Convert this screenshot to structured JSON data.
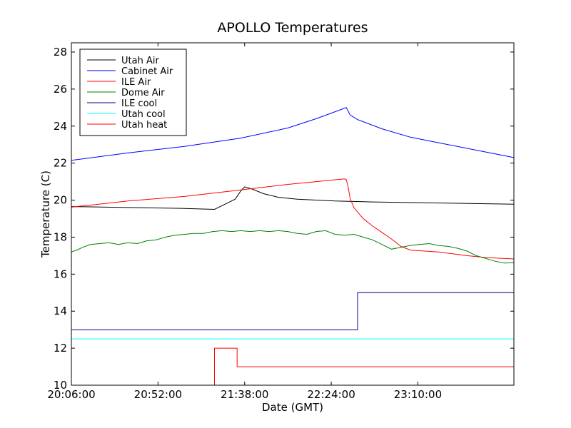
{
  "chart_data": {
    "type": "line",
    "title": "APOLLO Temperatures",
    "xlabel": "Date (GMT)",
    "ylabel": "Temperature (C)",
    "xlim_minutes": [
      0,
      235
    ],
    "ylim": [
      10,
      28.5
    ],
    "x_ticks": [
      {
        "value": 0,
        "label": "20:06:00"
      },
      {
        "value": 46,
        "label": "20:52:00"
      },
      {
        "value": 92,
        "label": "21:38:00"
      },
      {
        "value": 138,
        "label": "22:24:00"
      },
      {
        "value": 184,
        "label": "23:10:00"
      }
    ],
    "y_ticks": [
      {
        "value": 10,
        "label": "10"
      },
      {
        "value": 12,
        "label": "12"
      },
      {
        "value": 14,
        "label": "14"
      },
      {
        "value": 16,
        "label": "16"
      },
      {
        "value": 18,
        "label": "18"
      },
      {
        "value": 20,
        "label": "20"
      },
      {
        "value": 22,
        "label": "22"
      },
      {
        "value": 24,
        "label": "24"
      },
      {
        "value": 26,
        "label": "26"
      },
      {
        "value": 28,
        "label": "28"
      }
    ],
    "legend_position": "top-left",
    "series": [
      {
        "name": "Utah Air",
        "color": "#000000",
        "points": [
          [
            0,
            19.65
          ],
          [
            30,
            19.6
          ],
          [
            60,
            19.55
          ],
          [
            76,
            19.5
          ],
          [
            80,
            19.7
          ],
          [
            87,
            20.05
          ],
          [
            90,
            20.5
          ],
          [
            92,
            20.72
          ],
          [
            96,
            20.6
          ],
          [
            102,
            20.35
          ],
          [
            110,
            20.15
          ],
          [
            120,
            20.05
          ],
          [
            140,
            19.95
          ],
          [
            160,
            19.9
          ],
          [
            190,
            19.85
          ],
          [
            235,
            19.78
          ]
        ]
      },
      {
        "name": "Cabinet Air",
        "color": "#0000ff",
        "points": [
          [
            0,
            22.15
          ],
          [
            30,
            22.55
          ],
          [
            60,
            22.9
          ],
          [
            90,
            23.35
          ],
          [
            115,
            23.9
          ],
          [
            130,
            24.4
          ],
          [
            138,
            24.7
          ],
          [
            146,
            25.0
          ],
          [
            148,
            24.6
          ],
          [
            152,
            24.35
          ],
          [
            165,
            23.85
          ],
          [
            180,
            23.4
          ],
          [
            200,
            23.0
          ],
          [
            215,
            22.7
          ],
          [
            235,
            22.3
          ]
        ]
      },
      {
        "name": "ILE Air",
        "color": "#ff0000",
        "points": [
          [
            0,
            19.62
          ],
          [
            30,
            19.95
          ],
          [
            60,
            20.2
          ],
          [
            90,
            20.55
          ],
          [
            115,
            20.85
          ],
          [
            130,
            21.0
          ],
          [
            140,
            21.1
          ],
          [
            145,
            21.15
          ],
          [
            146,
            21.1
          ],
          [
            147,
            20.7
          ],
          [
            148,
            20.1
          ],
          [
            150,
            19.6
          ],
          [
            155,
            19.0
          ],
          [
            160,
            18.6
          ],
          [
            165,
            18.25
          ],
          [
            170,
            17.9
          ],
          [
            175,
            17.5
          ],
          [
            180,
            17.3
          ],
          [
            195,
            17.2
          ],
          [
            210,
            17.0
          ],
          [
            220,
            16.9
          ],
          [
            235,
            16.82
          ]
        ]
      },
      {
        "name": "Dome Air",
        "color": "#008000",
        "points": [
          [
            0,
            17.2
          ],
          [
            3,
            17.3
          ],
          [
            6,
            17.45
          ],
          [
            10,
            17.6
          ],
          [
            15,
            17.65
          ],
          [
            20,
            17.7
          ],
          [
            25,
            17.6
          ],
          [
            30,
            17.7
          ],
          [
            35,
            17.65
          ],
          [
            40,
            17.8
          ],
          [
            45,
            17.85
          ],
          [
            50,
            18.0
          ],
          [
            55,
            18.1
          ],
          [
            60,
            18.15
          ],
          [
            65,
            18.2
          ],
          [
            70,
            18.2
          ],
          [
            75,
            18.3
          ],
          [
            80,
            18.35
          ],
          [
            85,
            18.3
          ],
          [
            90,
            18.35
          ],
          [
            95,
            18.3
          ],
          [
            100,
            18.35
          ],
          [
            105,
            18.3
          ],
          [
            110,
            18.35
          ],
          [
            115,
            18.3
          ],
          [
            120,
            18.2
          ],
          [
            125,
            18.15
          ],
          [
            130,
            18.3
          ],
          [
            135,
            18.35
          ],
          [
            140,
            18.15
          ],
          [
            145,
            18.1
          ],
          [
            150,
            18.15
          ],
          [
            155,
            18.0
          ],
          [
            160,
            17.85
          ],
          [
            165,
            17.6
          ],
          [
            170,
            17.35
          ],
          [
            175,
            17.45
          ],
          [
            180,
            17.55
          ],
          [
            185,
            17.6
          ],
          [
            190,
            17.65
          ],
          [
            195,
            17.55
          ],
          [
            200,
            17.5
          ],
          [
            205,
            17.4
          ],
          [
            210,
            17.25
          ],
          [
            215,
            17.0
          ],
          [
            220,
            16.85
          ],
          [
            225,
            16.7
          ],
          [
            230,
            16.6
          ],
          [
            235,
            16.62
          ]
        ]
      },
      {
        "name": "ILE cool",
        "color": "#000080",
        "points": [
          [
            0,
            13
          ],
          [
            152,
            13
          ],
          [
            152,
            15
          ],
          [
            235,
            15
          ]
        ]
      },
      {
        "name": "Utah cool",
        "color": "#00ffff",
        "points": [
          [
            0,
            12.5
          ],
          [
            235,
            12.5
          ]
        ]
      },
      {
        "name": "Utah heat",
        "color": "#ff0000",
        "points": [
          [
            76,
            10
          ],
          [
            76,
            12
          ],
          [
            88,
            12
          ],
          [
            88,
            11
          ],
          [
            235,
            11
          ]
        ]
      }
    ]
  }
}
